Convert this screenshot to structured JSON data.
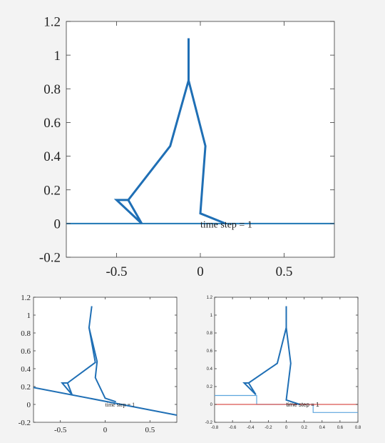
{
  "chart_data": [
    {
      "type": "line",
      "title": "",
      "xlabel": "",
      "ylabel": "",
      "xlim": [
        -0.8,
        0.8
      ],
      "ylim": [
        -0.2,
        1.2
      ],
      "xticks": [
        -0.5,
        0,
        0.5
      ],
      "xtick_labels": [
        "-0.5",
        "0",
        "0.5"
      ],
      "yticks": [
        -0.2,
        0,
        0.2,
        0.4,
        0.6,
        0.8,
        1,
        1.2
      ],
      "ytick_labels": [
        "-0.2",
        "0",
        "0.2",
        "0.4",
        "0.6",
        "0.8",
        "1",
        "1.2"
      ],
      "grid": false,
      "annotation": "time step = 1",
      "annotation_pos": [
        0,
        0
      ],
      "series": [
        {
          "color": "#1f77b4",
          "x": [
            -0.8,
            0.8
          ],
          "y": [
            0,
            0
          ]
        },
        {
          "color": "#1f6fb5",
          "x": [
            -0.07,
            -0.07,
            -0.18,
            -0.43,
            -0.5,
            -0.35,
            -0.43
          ],
          "y": [
            1.1,
            0.85,
            0.46,
            0.14,
            0.14,
            0,
            0.14
          ]
        },
        {
          "color": "#1f6fb5",
          "x": [
            -0.07,
            0.03,
            0.0,
            0.0,
            0.15,
            0.0
          ],
          "y": [
            0.85,
            0.46,
            0.06,
            0.06,
            0,
            0.06
          ]
        },
        {
          "color": "#1f6fb5",
          "x": [
            -0.07,
            -0.07
          ],
          "y": [
            0.85,
            1.1
          ]
        }
      ]
    },
    {
      "type": "line",
      "title": "",
      "xlabel": "",
      "ylabel": "",
      "xlim": [
        -0.8,
        0.8
      ],
      "ylim": [
        -0.2,
        1.2
      ],
      "xticks": [
        -0.5,
        0,
        0.5
      ],
      "xtick_labels": [
        "-0.5",
        "0",
        "0.5"
      ],
      "yticks": [
        -0.2,
        0,
        0.2,
        0.4,
        0.6,
        0.8,
        1,
        1.2
      ],
      "ytick_labels": [
        "-0.2",
        "0",
        "0.2",
        "0.4",
        "0.6",
        "0.8",
        "1",
        "1.2"
      ],
      "grid": false,
      "annotation": "time step = 1",
      "annotation_pos": [
        0,
        0
      ],
      "series": [
        {
          "color": "#1f6fb5",
          "x": [
            -0.8,
            0.8
          ],
          "y": [
            0.19,
            -0.12
          ]
        },
        {
          "color": "#1f6fb5",
          "x": [
            -0.15,
            -0.18,
            -0.11,
            -0.42,
            -0.48,
            -0.37,
            -0.42
          ],
          "y": [
            1.1,
            0.86,
            0.47,
            0.24,
            0.24,
            0.11,
            0.24
          ]
        },
        {
          "color": "#1f6fb5",
          "x": [
            -0.18,
            -0.09,
            -0.11,
            0.0,
            0.12,
            0.0,
            -0.11
          ],
          "y": [
            0.86,
            0.48,
            0.3,
            0.07,
            0.03,
            0.07,
            0.3
          ]
        }
      ]
    },
    {
      "type": "line",
      "title": "",
      "xlabel": "",
      "ylabel": "",
      "xlim": [
        -0.8,
        0.8
      ],
      "ylim": [
        -0.2,
        1.2
      ],
      "xticks": [
        -0.8,
        -0.6,
        -0.4,
        -0.2,
        0,
        0.2,
        0.4,
        0.6,
        0.8
      ],
      "xtick_labels": [
        "-0.8",
        "-0.6",
        "-0.4",
        "-0.2",
        "0",
        "0.2",
        "0.4",
        "0.6",
        "0.8"
      ],
      "yticks": [
        -0.2,
        0,
        0.2,
        0.4,
        0.6,
        0.8,
        1,
        1.2
      ],
      "ytick_labels": [
        "-0.2",
        "0",
        "0.2",
        "0.4",
        "0.6",
        "0.8",
        "1",
        "1.2"
      ],
      "grid": false,
      "annotation": "time step = 1",
      "annotation_pos": [
        0,
        0
      ],
      "series": [
        {
          "color": "#5da5dd",
          "x": [
            -0.8,
            -0.33,
            -0.33,
            0.3,
            0.3,
            0.8
          ],
          "y": [
            0.1,
            0.1,
            0,
            0,
            -0.09,
            -0.09
          ]
        },
        {
          "color": "#d9534f",
          "x": [
            -0.8,
            0.8
          ],
          "y": [
            0,
            0
          ]
        },
        {
          "color": "#1f6fb5",
          "x": [
            0.0,
            0.0,
            -0.1,
            -0.42,
            -0.47,
            -0.34,
            -0.42
          ],
          "y": [
            1.1,
            0.86,
            0.46,
            0.24,
            0.24,
            0.11,
            0.24
          ]
        },
        {
          "color": "#1f6fb5",
          "x": [
            0.0,
            0.05,
            0.0,
            0.0,
            0.15,
            0.0
          ],
          "y": [
            0.86,
            0.46,
            0.05,
            0.05,
            0.0,
            0.05
          ]
        }
      ]
    }
  ]
}
